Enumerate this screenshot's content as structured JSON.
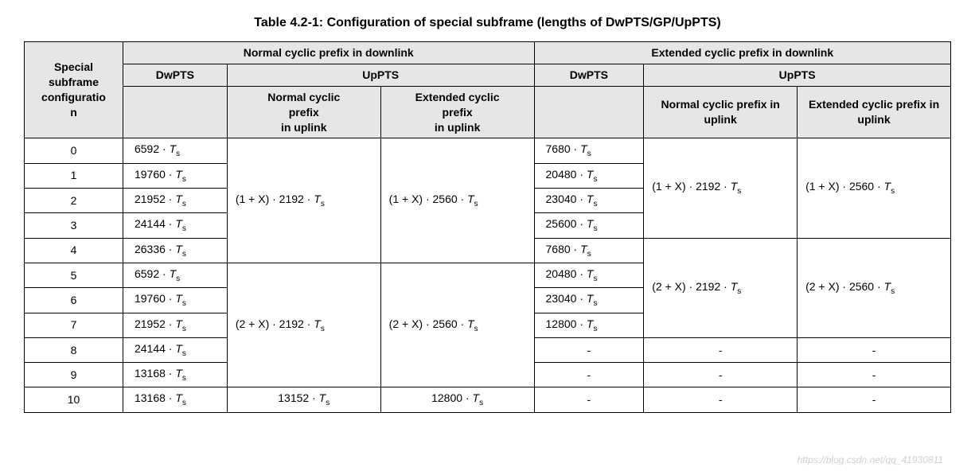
{
  "title": "Table 4.2-1: Configuration of special subframe (lengths of DwPTS/GP/UpPTS)",
  "headers": {
    "config": "Special subframe configuration",
    "normal_dl": "Normal cyclic prefix in downlink",
    "extended_dl": "Extended cyclic prefix in downlink",
    "dwpts": "DwPTS",
    "uppts": "UpPTS",
    "normal_ul": "Normal cyclic prefix in uplink",
    "extended_ul": "Extended cyclic prefix in uplink",
    "normal_ul2": "Normal cyclic prefix in uplink",
    "extended_ul2": "Extended cyclic prefix in uplink"
  },
  "rows": {
    "r0": {
      "cfg": "0",
      "ndw": "6592",
      "edw": "7680"
    },
    "r1": {
      "cfg": "1",
      "ndw": "19760",
      "edw": "20480"
    },
    "r2": {
      "cfg": "2",
      "ndw": "21952",
      "edw": "23040"
    },
    "r3": {
      "cfg": "3",
      "ndw": "24144",
      "edw": "25600"
    },
    "r4": {
      "cfg": "4",
      "ndw": "26336",
      "edw": "7680"
    },
    "r5": {
      "cfg": "5",
      "ndw": "6592",
      "edw": "20480"
    },
    "r6": {
      "cfg": "6",
      "ndw": "19760",
      "edw": "23040"
    },
    "r7": {
      "cfg": "7",
      "ndw": "21952",
      "edw": "12800"
    },
    "r8": {
      "cfg": "8",
      "ndw": "24144"
    },
    "r9": {
      "cfg": "9",
      "ndw": "13168"
    },
    "r10": {
      "cfg": "10",
      "ndw": "13168",
      "nu": "13152",
      "eu": "12800"
    }
  },
  "formulas": {
    "n1_normal": "(1 + X) · 2192 ·",
    "n1_ext": "(1 + X) · 2560 ·",
    "n2_normal": "(2 + X) · 2192 ·",
    "n2_ext": "(2 + X) · 2560 ·",
    "e1_normal": "(1 + X) · 2192 ·",
    "e1_ext": "(1 + X) · 2560 ·",
    "e2_normal": "(2 + X) · 2192 ·",
    "e2_ext": "(2 + X) · 2560 ·"
  },
  "dash": "-",
  "dot": " · ",
  "ts_glyph": "T",
  "ts_sub": "s",
  "watermark": "https://blog.csdn.net/qq_41930811",
  "style": {
    "header_bg": "#e6e6e6",
    "border": "#000000",
    "font": "Arial",
    "title_size": 16,
    "cell_size": 14
  }
}
